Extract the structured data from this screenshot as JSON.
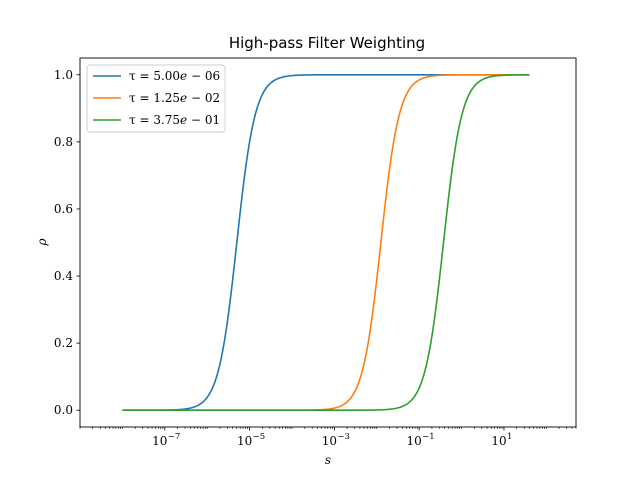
{
  "chart_data": {
    "type": "line",
    "title": "High-pass Filter Weighting",
    "xlabel": "s",
    "ylabel": "ρ",
    "xscale": "log",
    "xlim": [
      1e-09,
      500
    ],
    "ylim": [
      -0.05,
      1.05
    ],
    "x_range_data": [
      1e-08,
      40
    ],
    "x_ticks": [
      {
        "value": 1e-07,
        "base": "10",
        "exp": "−7"
      },
      {
        "value": 1e-05,
        "base": "10",
        "exp": "−5"
      },
      {
        "value": 0.001,
        "base": "10",
        "exp": "−3"
      },
      {
        "value": 0.1,
        "base": "10",
        "exp": "−1"
      },
      {
        "value": 10,
        "base": "10",
        "exp": "1"
      }
    ],
    "y_ticks": [
      "0.0",
      "0.2",
      "0.4",
      "0.6",
      "0.8",
      "1.0"
    ],
    "grid": false,
    "legend_position": "top-left",
    "series": [
      {
        "name_prefix": "τ = 5.00",
        "name_e": "e",
        "name_suffix": " − 06",
        "tau": 5e-06,
        "color": "#1f77b4"
      },
      {
        "name_prefix": "τ = 1.25",
        "name_e": "e",
        "name_suffix": " − 02",
        "tau": 0.0125,
        "color": "#ff7f0e"
      },
      {
        "name_prefix": "τ = 3.75",
        "name_e": "e",
        "name_suffix": " − 01",
        "tau": 0.375,
        "color": "#2ca02c"
      }
    ]
  }
}
